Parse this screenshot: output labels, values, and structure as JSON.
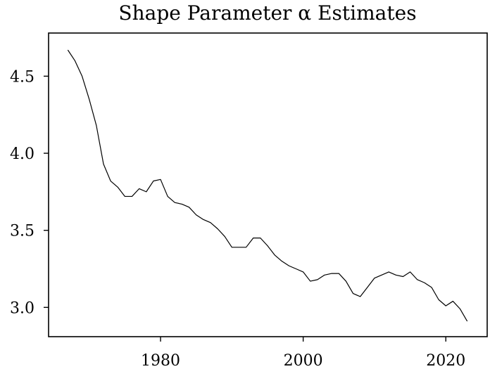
{
  "chart_data": {
    "type": "line",
    "title": "Shape Parameter α Estimates",
    "xlabel": "",
    "ylabel": "",
    "xlim": [
      1964.3,
      2025.8
    ],
    "ylim": [
      2.81,
      4.78
    ],
    "xticks": [
      1980,
      2000,
      2020
    ],
    "yticks": [
      3.0,
      3.5,
      4.0,
      4.5
    ],
    "xtick_labels": [
      "1980",
      "2000",
      "2020"
    ],
    "ytick_labels": [
      "3.0",
      "3.5",
      "4.0",
      "4.5"
    ],
    "grid": false,
    "legend": "none",
    "series": [
      {
        "color": "#000000",
        "x": [
          1967,
          1968,
          1969,
          1970,
          1971,
          1972,
          1973,
          1974,
          1975,
          1976,
          1977,
          1978,
          1979,
          1980,
          1981,
          1982,
          1983,
          1984,
          1985,
          1986,
          1987,
          1988,
          1989,
          1990,
          1991,
          1992,
          1993,
          1994,
          1995,
          1996,
          1997,
          1998,
          1999,
          2000,
          2001,
          2002,
          2003,
          2004,
          2005,
          2006,
          2007,
          2008,
          2009,
          2010,
          2011,
          2012,
          2013,
          2014,
          2015,
          2016,
          2017,
          2018,
          2019,
          2020,
          2021,
          2022,
          2023
        ],
        "y": [
          4.67,
          4.6,
          4.5,
          4.35,
          4.18,
          3.93,
          3.82,
          3.78,
          3.72,
          3.72,
          3.77,
          3.75,
          3.82,
          3.83,
          3.72,
          3.68,
          3.67,
          3.65,
          3.6,
          3.57,
          3.55,
          3.51,
          3.46,
          3.39,
          3.39,
          3.39,
          3.45,
          3.45,
          3.4,
          3.34,
          3.3,
          3.27,
          3.25,
          3.23,
          3.17,
          3.18,
          3.21,
          3.22,
          3.22,
          3.17,
          3.09,
          3.07,
          3.13,
          3.19,
          3.21,
          3.23,
          3.21,
          3.2,
          3.23,
          3.18,
          3.16,
          3.13,
          3.05,
          3.01,
          3.04,
          2.99,
          2.91
        ]
      }
    ]
  }
}
